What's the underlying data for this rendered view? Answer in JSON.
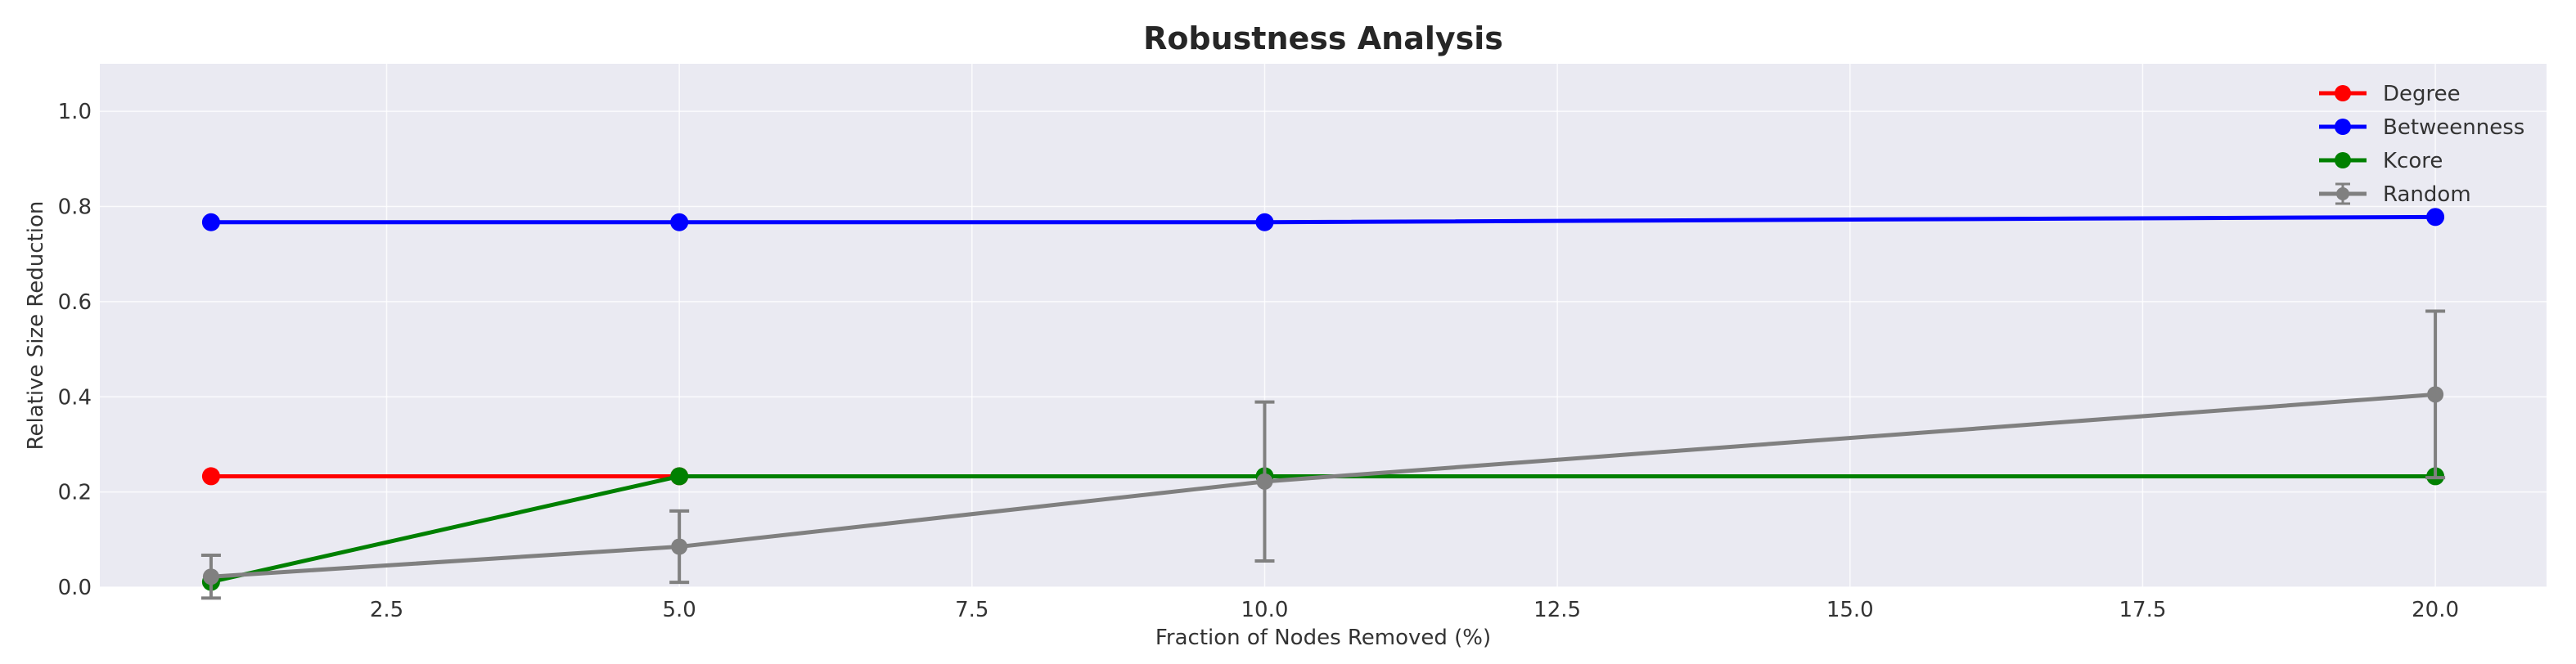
{
  "chart_data": {
    "type": "line",
    "title": "Robustness Analysis",
    "xlabel": "Fraction of Nodes Removed (%)",
    "ylabel": "Relative Size Reduction",
    "x": [
      1,
      5,
      10,
      20
    ],
    "xlim": [
      0.05,
      20.95
    ],
    "ylim": [
      0.0,
      1.1
    ],
    "xticks": [
      2.5,
      5.0,
      7.5,
      10.0,
      12.5,
      15.0,
      17.5,
      20.0
    ],
    "xtick_labels": [
      "2.5",
      "5.0",
      "7.5",
      "10.0",
      "12.5",
      "15.0",
      "17.5",
      "20.0"
    ],
    "yticks": [
      0.0,
      0.2,
      0.4,
      0.6,
      0.8,
      1.0
    ],
    "ytick_labels": [
      "0.0",
      "0.2",
      "0.4",
      "0.6",
      "0.8",
      "1.0"
    ],
    "grid": true,
    "legend_position": "top-right",
    "series": [
      {
        "name": "Degree",
        "color": "#ff0000",
        "marker": "circle",
        "x": [
          1,
          5
        ],
        "y": [
          0.233,
          0.233
        ]
      },
      {
        "name": "Betweenness",
        "color": "#0000ff",
        "marker": "circle",
        "x": [
          1,
          5,
          10,
          20
        ],
        "y": [
          0.767,
          0.767,
          0.767,
          0.778
        ]
      },
      {
        "name": "Kcore",
        "color": "#008000",
        "marker": "circle",
        "x": [
          1,
          5,
          10,
          20
        ],
        "y": [
          0.011,
          0.233,
          0.233,
          0.233
        ]
      },
      {
        "name": "Random",
        "color": "#808080",
        "marker": "circle",
        "errorbars": true,
        "x": [
          1,
          5,
          10,
          20
        ],
        "y": [
          0.022,
          0.085,
          0.222,
          0.405
        ],
        "err": [
          0.045,
          0.075,
          0.167,
          0.175
        ]
      }
    ]
  }
}
